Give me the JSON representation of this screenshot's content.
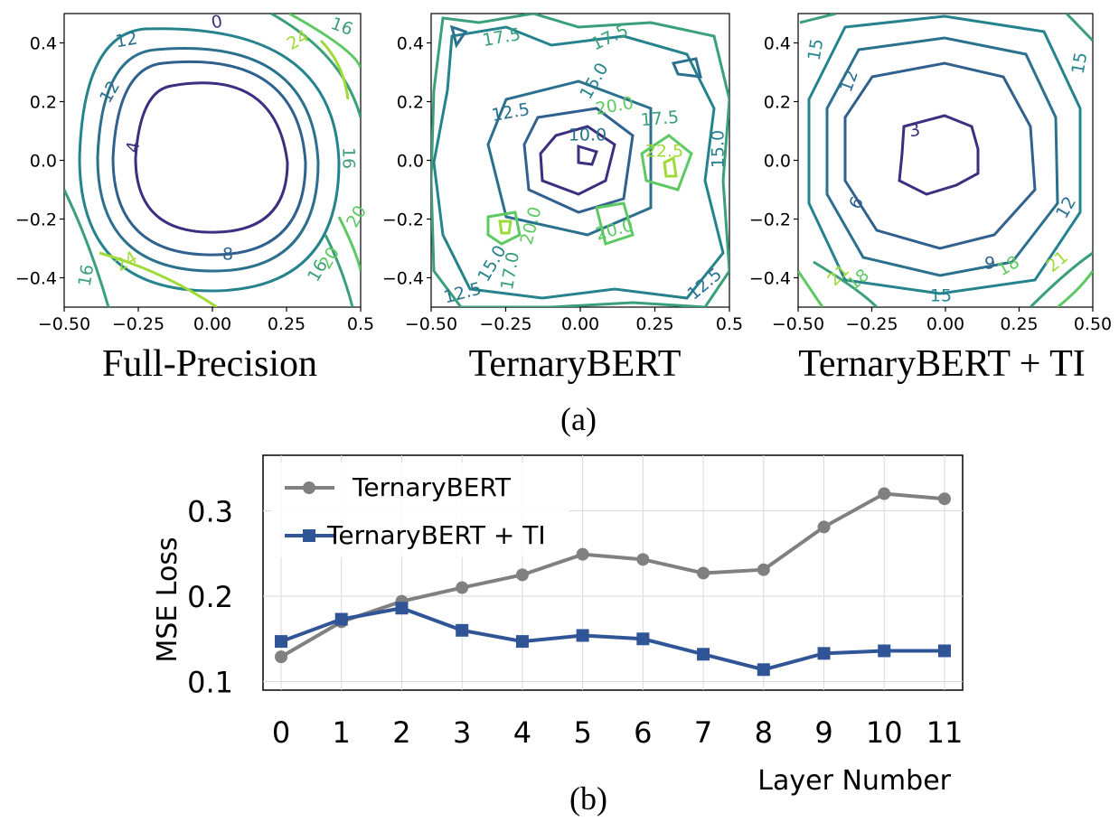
{
  "figure": {
    "caption_a": "(a)",
    "caption_b": "(b)"
  },
  "chart_data": [
    {
      "type": "contour",
      "title": "Full-Precision",
      "xlim": [
        -0.5,
        0.5
      ],
      "ylim": [
        -0.5,
        0.5
      ],
      "xticks": [
        "−0.50",
        "−0.25",
        "0.00",
        "0.25",
        "0.5"
      ],
      "yticks": [
        "0.4",
        "0.2",
        "0.0",
        "−0.2",
        "−0.4"
      ],
      "contour_labels": [
        "4",
        "8",
        "12",
        "12",
        "16",
        "16",
        "16",
        "20",
        "20",
        "24",
        "24",
        "0",
        "16"
      ]
    },
    {
      "type": "contour",
      "title": "TernaryBERT",
      "xlim": [
        -0.5,
        0.5
      ],
      "ylim": [
        -0.5,
        0.5
      ],
      "xticks": [
        "−0.50",
        "−0.25",
        "0.00",
        "0.25",
        "0.5"
      ],
      "yticks": [
        "0.4",
        "0.2",
        "0.0",
        "−0.2",
        "−0.4"
      ],
      "contour_labels": [
        "17.5",
        "17.5",
        "15.0",
        "12.5",
        "10.0",
        "17.5",
        "20.0",
        "22.5",
        "15.0",
        "20.0",
        "20.0",
        "15.0",
        "17.0",
        "12.5",
        "12.5"
      ]
    },
    {
      "type": "contour",
      "title": "TernaryBERT + TI",
      "xlim": [
        -0.5,
        0.5
      ],
      "ylim": [
        -0.5,
        0.5
      ],
      "xticks": [
        "−0.50",
        "−0.25",
        "0.00",
        "0.25",
        "0.50"
      ],
      "yticks": [
        "0.4",
        "0.2",
        "0.0",
        "−0.2",
        "−0.4"
      ],
      "contour_labels": [
        "3",
        "6",
        "9",
        "12",
        "12",
        "15",
        "15",
        "15",
        "18",
        "18",
        "21",
        "21"
      ]
    },
    {
      "type": "line",
      "xlabel": "Layer Number",
      "ylabel": "MSE Loss",
      "x": [
        0,
        1,
        2,
        3,
        4,
        5,
        6,
        7,
        8,
        9,
        10,
        11
      ],
      "xlim": [
        -0.3,
        11.3
      ],
      "ylim": [
        0.09,
        0.365
      ],
      "yticks": [
        0.1,
        0.2,
        0.3
      ],
      "grid": true,
      "legend": "top-left",
      "series": [
        {
          "name": "TernaryBERT",
          "color": "#808080",
          "marker": "circle",
          "values": [
            0.129,
            0.17,
            0.194,
            0.21,
            0.225,
            0.249,
            0.243,
            0.227,
            0.231,
            0.281,
            0.32,
            0.314
          ]
        },
        {
          "name": "TernaryBERT + TI",
          "color": "#2f5597",
          "marker": "square",
          "values": [
            0.147,
            0.173,
            0.186,
            0.16,
            0.147,
            0.154,
            0.15,
            0.132,
            0.114,
            0.133,
            0.136,
            0.136
          ]
        }
      ]
    }
  ]
}
